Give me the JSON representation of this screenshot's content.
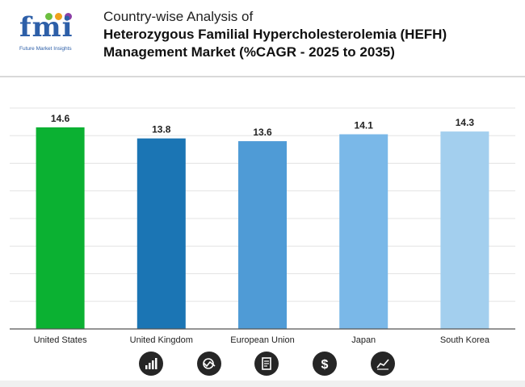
{
  "brand": {
    "logo_text": "fmi",
    "logo_subtitle": "Future Market Insights",
    "dot_colors": [
      "#6cbf3f",
      "#f0a11c",
      "#8b3fa6"
    ]
  },
  "title": {
    "line1": "Country-wise Analysis of",
    "line2": "Heterozygous Familial Hypercholesterolemia (HEFH)",
    "line3": "Management Market (%CAGR - 2025 to 2035)"
  },
  "chart_data": {
    "type": "bar",
    "categories": [
      "United States",
      "United Kingdom",
      "European Union",
      "Japan",
      "South Korea"
    ],
    "values": [
      14.6,
      13.8,
      13.6,
      14.1,
      14.3
    ],
    "colors": [
      "#0bb132",
      "#1b75b4",
      "#4f9bd6",
      "#7ab8e8",
      "#a3cfee"
    ],
    "title": "",
    "xlabel": "",
    "ylabel": "",
    "ylim": [
      0,
      16
    ],
    "grid": true,
    "legend": "none"
  },
  "icons": [
    "bar-growth-icon",
    "globe-chart-icon",
    "document-icon",
    "dollar-icon",
    "trend-chart-icon"
  ]
}
